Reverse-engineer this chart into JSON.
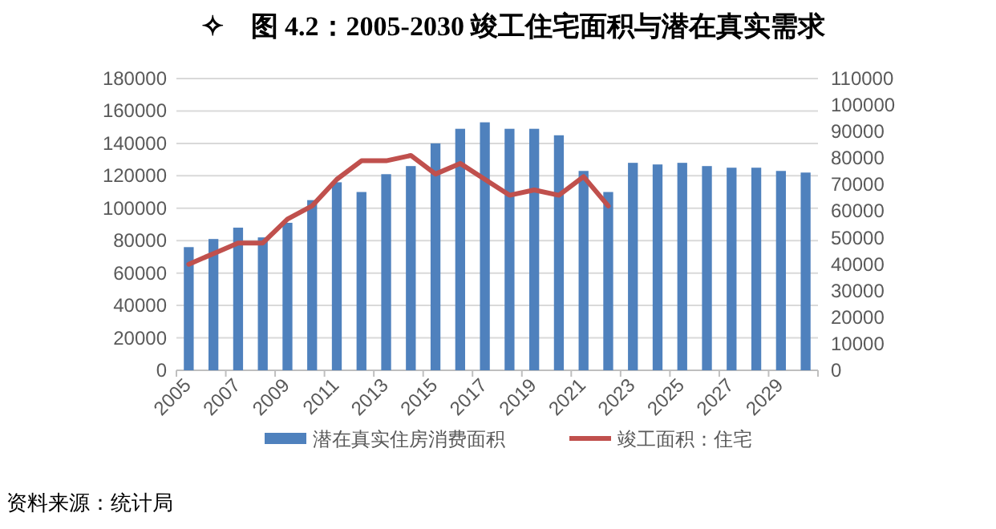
{
  "chart_data": {
    "type": "bar",
    "title": "✧　图 4.2：2005-2030 竣工住宅面积与潜在真实需求",
    "categories": [
      "2005",
      null,
      "2007",
      null,
      "2009",
      null,
      "2011",
      null,
      "2013",
      null,
      "2015",
      null,
      "2017",
      null,
      "2019",
      null,
      "2021",
      null,
      "2023",
      null,
      "2025",
      null,
      "2027",
      null,
      "2029",
      null
    ],
    "series": [
      {
        "name": "潜在真实住房消费面积",
        "color": "#4f81bd",
        "values": [
          76000,
          81000,
          88000,
          82000,
          91000,
          105000,
          116000,
          110000,
          121000,
          126000,
          140000,
          149000,
          153000,
          149000,
          149000,
          145000,
          123000,
          110000,
          128000,
          127000,
          128000,
          126000,
          125000,
          125000,
          123000,
          122000
        ]
      },
      {
        "name": "竣工面积：住宅",
        "type": "line",
        "axis": "y2",
        "color": "#c0504d",
        "values": [
          40000,
          44000,
          48000,
          48000,
          57000,
          62000,
          72000,
          79000,
          79000,
          81000,
          74000,
          78000,
          72000,
          66000,
          68000,
          66000,
          73000,
          62000,
          null,
          null,
          null,
          null,
          null,
          null,
          null,
          null
        ]
      }
    ],
    "ylim": [
      0,
      180000
    ],
    "yticks": [
      0,
      20000,
      40000,
      60000,
      80000,
      100000,
      120000,
      140000,
      160000,
      180000
    ],
    "y2lim": [
      0,
      110000
    ],
    "y2ticks": [
      0,
      10000,
      20000,
      30000,
      40000,
      50000,
      60000,
      70000,
      80000,
      90000,
      100000,
      110000
    ],
    "grid": "y",
    "legend": "bottom",
    "annotations": [
      "资料来源：统计局"
    ]
  }
}
